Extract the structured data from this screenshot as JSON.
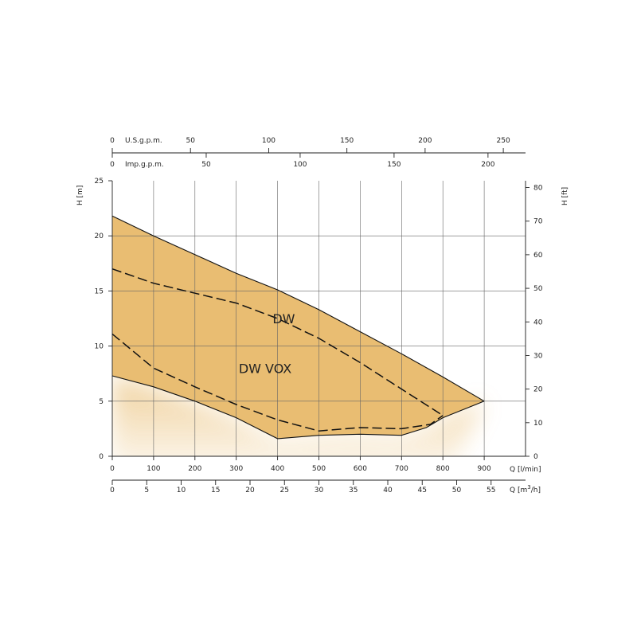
{
  "chart_data": {
    "type": "area",
    "x_axis": {
      "label": "Q [l/min]",
      "range": [
        0,
        1000
      ],
      "ticks": [
        0,
        100,
        200,
        300,
        400,
        500,
        600,
        700,
        800,
        900
      ]
    },
    "x_axis_m3h": {
      "label_prefix": "Q [m",
      "label_sup": "3",
      "label_suffix": "/h]",
      "ticks": [
        0,
        5,
        10,
        15,
        20,
        25,
        30,
        35,
        40,
        45,
        50,
        55
      ]
    },
    "top_axis_us": {
      "label": "U.S.g.p.m.",
      "ticks": [
        0,
        50,
        100,
        150,
        200,
        250
      ]
    },
    "top_axis_imp": {
      "label": "Imp.g.p.m.",
      "ticks": [
        0,
        50,
        100,
        150,
        200
      ]
    },
    "y_axis": {
      "label": "H [m]",
      "range": [
        0,
        25
      ],
      "ticks": [
        0,
        5,
        10,
        15,
        20,
        25
      ]
    },
    "y_axis_right": {
      "label": "H [ft]",
      "ticks": [
        0,
        10,
        20,
        30,
        40,
        50,
        60,
        70,
        80
      ]
    },
    "grid": true,
    "fill_color": "#e9bd72",
    "series": [
      {
        "name": "DW",
        "style": "solid",
        "points": [
          [
            0,
            21.8
          ],
          [
            100,
            20.0
          ],
          [
            200,
            18.3
          ],
          [
            300,
            16.6
          ],
          [
            400,
            15.1
          ],
          [
            500,
            13.3
          ],
          [
            600,
            11.3
          ],
          [
            700,
            9.3
          ],
          [
            800,
            7.2
          ],
          [
            900,
            5.0
          ]
        ]
      },
      {
        "name": "DW",
        "style": "dashed",
        "points": [
          [
            0,
            17.0
          ],
          [
            100,
            15.7
          ],
          [
            200,
            14.8
          ],
          [
            300,
            13.9
          ],
          [
            400,
            12.5
          ],
          [
            500,
            10.7
          ],
          [
            600,
            8.5
          ],
          [
            700,
            6.1
          ],
          [
            800,
            3.7
          ]
        ]
      },
      {
        "name": "DW VOX",
        "style": "dashed",
        "points": [
          [
            0,
            11.1
          ],
          [
            100,
            8.0
          ],
          [
            200,
            6.3
          ],
          [
            300,
            4.7
          ],
          [
            400,
            3.3
          ],
          [
            500,
            2.3
          ],
          [
            600,
            2.6
          ],
          [
            700,
            2.5
          ],
          [
            770,
            2.9
          ],
          [
            800,
            3.7
          ]
        ]
      },
      {
        "name": "DW VOX",
        "style": "solid",
        "points": [
          [
            0,
            7.3
          ],
          [
            100,
            6.3
          ],
          [
            200,
            5.0
          ],
          [
            300,
            3.5
          ],
          [
            400,
            1.6
          ],
          [
            500,
            1.9
          ],
          [
            600,
            2.0
          ],
          [
            700,
            1.9
          ],
          [
            760,
            2.6
          ],
          [
            800,
            3.5
          ],
          [
            900,
            5.0
          ]
        ]
      }
    ],
    "annotations": [
      {
        "text": "DW",
        "at": [
          415,
          12.5
        ]
      },
      {
        "text": "DW VOX",
        "at": [
          370,
          8.0
        ]
      }
    ]
  }
}
